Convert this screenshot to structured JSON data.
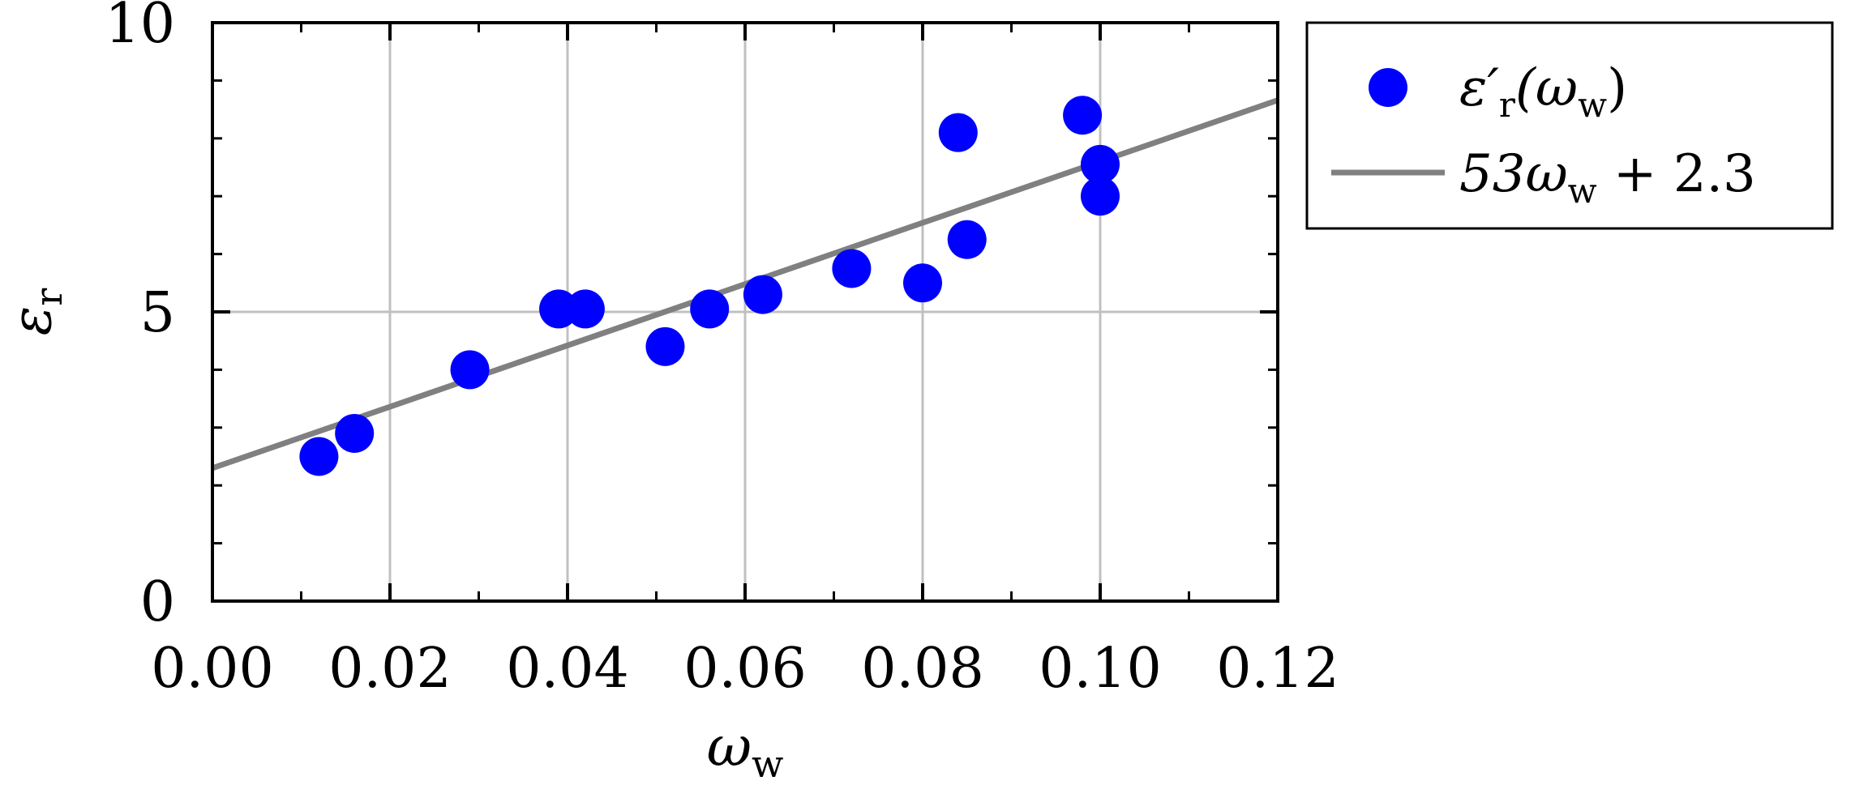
{
  "chart_data": {
    "type": "scatter",
    "xlabel": "ωw",
    "xlabel_main": "ω",
    "xlabel_sub": "w",
    "ylabel": "εr",
    "ylabel_main": "ε",
    "ylabel_sub": "r",
    "xlim": [
      0.0,
      0.12
    ],
    "ylim": [
      0,
      10
    ],
    "xticks": [
      0.0,
      0.02,
      0.04,
      0.06,
      0.08,
      0.1,
      0.12
    ],
    "xtick_labels": [
      "0.00",
      "0.02",
      "0.04",
      "0.06",
      "0.08",
      "0.10",
      "0.12"
    ],
    "yticks": [
      0,
      5,
      10
    ],
    "ytick_labels": [
      "0",
      "5",
      "10"
    ],
    "grid": true,
    "legend_position": "outside-right-top",
    "series": [
      {
        "name": "ε′r(ωw)",
        "kind": "scatter",
        "color": "#0000ff",
        "points": [
          {
            "x": 0.012,
            "y": 2.5
          },
          {
            "x": 0.016,
            "y": 2.9
          },
          {
            "x": 0.029,
            "y": 4.0
          },
          {
            "x": 0.039,
            "y": 5.05
          },
          {
            "x": 0.042,
            "y": 5.05
          },
          {
            "x": 0.051,
            "y": 4.4
          },
          {
            "x": 0.056,
            "y": 5.05
          },
          {
            "x": 0.062,
            "y": 5.3
          },
          {
            "x": 0.072,
            "y": 5.75
          },
          {
            "x": 0.08,
            "y": 5.5
          },
          {
            "x": 0.084,
            "y": 8.1
          },
          {
            "x": 0.085,
            "y": 6.25
          },
          {
            "x": 0.098,
            "y": 8.4
          },
          {
            "x": 0.1,
            "y": 7.55
          },
          {
            "x": 0.1,
            "y": 7.0
          }
        ]
      },
      {
        "name": "53ωw + 2.3",
        "kind": "line",
        "color": "#808080",
        "slope": 53,
        "intercept": 2.3
      }
    ],
    "legend": [
      {
        "main": "ε′",
        "sub": "r",
        "rest": "(ω",
        "sub2": "w",
        "close": ")"
      },
      {
        "main": "53ω",
        "sub": "w",
        "rest": " + 2.3"
      }
    ]
  }
}
